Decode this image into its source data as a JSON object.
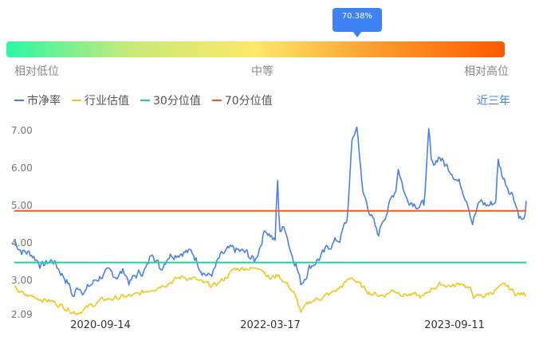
{
  "gauge": {
    "percentile_label": "70.38%",
    "percentile_value": 0.7038,
    "low_label": "相对低位",
    "mid_label": "中等",
    "high_label": "相对高位"
  },
  "range_link": "近三年",
  "chart_data": {
    "type": "line",
    "x_ticks": [
      "2020-09-14",
      "2022-03-17",
      "2023-09-11"
    ],
    "y_ticks": [
      "2.09",
      "3.00",
      "4.00",
      "5.00",
      "6.00",
      "7.00"
    ],
    "ylim": [
      2.09,
      7.3
    ],
    "grid": false,
    "legend_position": "top-left",
    "series": [
      {
        "name": "市净率",
        "color": "#4a80ee",
        "anchors": [
          [
            0,
            4.05
          ],
          [
            0.015,
            3.8
          ],
          [
            0.035,
            3.7
          ],
          [
            0.055,
            3.4
          ],
          [
            0.075,
            3.55
          ],
          [
            0.09,
            3.25
          ],
          [
            0.105,
            2.95
          ],
          [
            0.115,
            2.55
          ],
          [
            0.125,
            2.85
          ],
          [
            0.14,
            2.75
          ],
          [
            0.155,
            2.95
          ],
          [
            0.17,
            3.15
          ],
          [
            0.2,
            3.15
          ],
          [
            0.215,
            3.25
          ],
          [
            0.225,
            2.95
          ],
          [
            0.24,
            3.15
          ],
          [
            0.26,
            3.35
          ],
          [
            0.27,
            3.85
          ],
          [
            0.285,
            3.3
          ],
          [
            0.3,
            3.7
          ],
          [
            0.33,
            3.8
          ],
          [
            0.35,
            3.7
          ],
          [
            0.365,
            3.35
          ],
          [
            0.38,
            3.1
          ],
          [
            0.39,
            3.25
          ],
          [
            0.4,
            3.55
          ],
          [
            0.415,
            3.75
          ],
          [
            0.43,
            3.8
          ],
          [
            0.455,
            3.7
          ],
          [
            0.47,
            3.5
          ],
          [
            0.48,
            3.95
          ],
          [
            0.49,
            4.4
          ],
          [
            0.5,
            4.25
          ],
          [
            0.51,
            4.0
          ],
          [
            0.5135,
            5.85
          ],
          [
            0.518,
            4.35
          ],
          [
            0.53,
            4.4
          ],
          [
            0.54,
            3.8
          ],
          [
            0.55,
            3.5
          ],
          [
            0.56,
            2.9
          ],
          [
            0.575,
            3.35
          ],
          [
            0.59,
            3.55
          ],
          [
            0.605,
            3.7
          ],
          [
            0.62,
            4.0
          ],
          [
            0.635,
            4.1
          ],
          [
            0.65,
            4.6
          ],
          [
            0.66,
            6.75
          ],
          [
            0.67,
            7.12
          ],
          [
            0.68,
            5.35
          ],
          [
            0.695,
            4.85
          ],
          [
            0.71,
            4.15
          ],
          [
            0.72,
            4.65
          ],
          [
            0.735,
            5.1
          ],
          [
            0.745,
            5.45
          ],
          [
            0.75,
            6.05
          ],
          [
            0.765,
            5.2
          ],
          [
            0.775,
            5.15
          ],
          [
            0.79,
            5.05
          ],
          [
            0.8,
            5.0
          ],
          [
            0.81,
            7.0
          ],
          [
            0.815,
            6.0
          ],
          [
            0.83,
            6.35
          ],
          [
            0.84,
            6.1
          ],
          [
            0.855,
            5.95
          ],
          [
            0.87,
            5.6
          ],
          [
            0.885,
            5.2
          ],
          [
            0.895,
            4.6
          ],
          [
            0.91,
            5.1
          ],
          [
            0.925,
            5.0
          ],
          [
            0.94,
            5.1
          ],
          [
            0.945,
            6.2
          ],
          [
            0.955,
            5.75
          ],
          [
            0.965,
            5.5
          ],
          [
            0.975,
            5.3
          ],
          [
            0.985,
            4.8
          ],
          [
            0.995,
            4.55
          ],
          [
            1,
            5.05
          ]
        ]
      },
      {
        "name": "行业估值",
        "color": "#f5c518",
        "anchors": [
          [
            0,
            2.8
          ],
          [
            0.02,
            2.6
          ],
          [
            0.045,
            2.55
          ],
          [
            0.07,
            2.45
          ],
          [
            0.09,
            2.35
          ],
          [
            0.105,
            2.25
          ],
          [
            0.12,
            2.15
          ],
          [
            0.14,
            2.25
          ],
          [
            0.16,
            2.4
          ],
          [
            0.18,
            2.5
          ],
          [
            0.21,
            2.55
          ],
          [
            0.24,
            2.6
          ],
          [
            0.27,
            2.8
          ],
          [
            0.3,
            2.95
          ],
          [
            0.33,
            3.1
          ],
          [
            0.35,
            3.05
          ],
          [
            0.37,
            2.9
          ],
          [
            0.39,
            2.85
          ],
          [
            0.41,
            3.05
          ],
          [
            0.43,
            3.3
          ],
          [
            0.455,
            3.35
          ],
          [
            0.47,
            3.3
          ],
          [
            0.48,
            3.4
          ],
          [
            0.5,
            3.05
          ],
          [
            0.515,
            3.15
          ],
          [
            0.53,
            2.95
          ],
          [
            0.545,
            2.7
          ],
          [
            0.56,
            2.15
          ],
          [
            0.58,
            2.45
          ],
          [
            0.6,
            2.55
          ],
          [
            0.62,
            2.65
          ],
          [
            0.64,
            2.85
          ],
          [
            0.66,
            3.1
          ],
          [
            0.68,
            2.8
          ],
          [
            0.7,
            2.65
          ],
          [
            0.72,
            2.6
          ],
          [
            0.74,
            2.75
          ],
          [
            0.76,
            2.65
          ],
          [
            0.78,
            2.6
          ],
          [
            0.8,
            2.55
          ],
          [
            0.815,
            2.8
          ],
          [
            0.835,
            2.9
          ],
          [
            0.86,
            2.85
          ],
          [
            0.875,
            2.95
          ],
          [
            0.89,
            2.75
          ],
          [
            0.9,
            2.55
          ],
          [
            0.92,
            2.6
          ],
          [
            0.94,
            2.75
          ],
          [
            0.96,
            2.85
          ],
          [
            0.98,
            2.65
          ],
          [
            1,
            2.62
          ]
        ]
      },
      {
        "name": "30分位值",
        "color": "#21d391",
        "constant": 3.48
      },
      {
        "name": "70分位值",
        "color": "#f25c1c",
        "constant": 4.86
      }
    ]
  }
}
